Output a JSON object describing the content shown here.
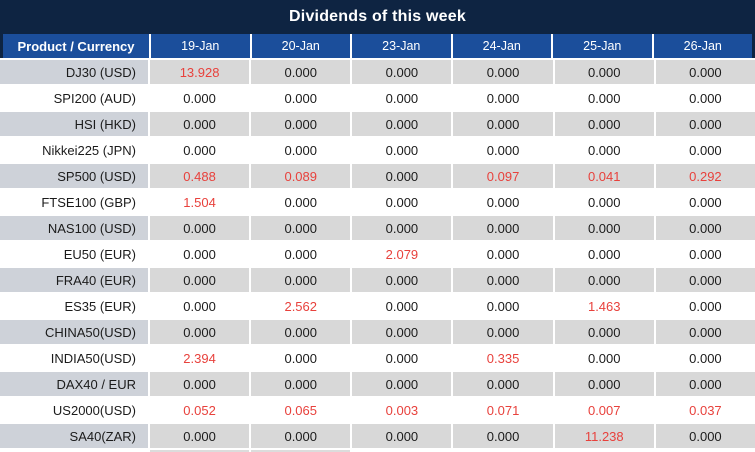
{
  "title": "Dividends of this week",
  "colors": {
    "title_bar_bg": "#0e2442",
    "header_bg": "#1b4e9b",
    "header_text": "#ffffff",
    "row_gray": "#d8d8d8",
    "product_column_gray": "#ced2d9",
    "row_white": "#ffffff",
    "value_text": "#1b1b1b",
    "nonzero_value_text": "#e8413c"
  },
  "chart_data": {
    "type": "table",
    "title": "Dividends of this week",
    "columns": [
      "Product / Currency",
      "19-Jan",
      "20-Jan",
      "23-Jan",
      "24-Jan",
      "25-Jan",
      "26-Jan"
    ],
    "rows": [
      {
        "product": "DJ30 (USD)",
        "values": [
          "13.928",
          "0.000",
          "0.000",
          "0.000",
          "0.000",
          "0.000"
        ]
      },
      {
        "product": "SPI200 (AUD)",
        "values": [
          "0.000",
          "0.000",
          "0.000",
          "0.000",
          "0.000",
          "0.000"
        ]
      },
      {
        "product": "HSI (HKD)",
        "values": [
          "0.000",
          "0.000",
          "0.000",
          "0.000",
          "0.000",
          "0.000"
        ]
      },
      {
        "product": "Nikkei225 (JPN)",
        "values": [
          "0.000",
          "0.000",
          "0.000",
          "0.000",
          "0.000",
          "0.000"
        ]
      },
      {
        "product": "SP500 (USD)",
        "values": [
          "0.488",
          "0.089",
          "0.000",
          "0.097",
          "0.041",
          "0.292"
        ]
      },
      {
        "product": "FTSE100 (GBP)",
        "values": [
          "1.504",
          "0.000",
          "0.000",
          "0.000",
          "0.000",
          "0.000"
        ]
      },
      {
        "product": "NAS100 (USD)",
        "values": [
          "0.000",
          "0.000",
          "0.000",
          "0.000",
          "0.000",
          "0.000"
        ]
      },
      {
        "product": "EU50 (EUR)",
        "values": [
          "0.000",
          "0.000",
          "2.079",
          "0.000",
          "0.000",
          "0.000"
        ]
      },
      {
        "product": "FRA40 (EUR)",
        "values": [
          "0.000",
          "0.000",
          "0.000",
          "0.000",
          "0.000",
          "0.000"
        ]
      },
      {
        "product": "ES35 (EUR)",
        "values": [
          "0.000",
          "2.562",
          "0.000",
          "0.000",
          "1.463",
          "0.000"
        ]
      },
      {
        "product": "CHINA50(USD)",
        "values": [
          "0.000",
          "0.000",
          "0.000",
          "0.000",
          "0.000",
          "0.000"
        ]
      },
      {
        "product": "INDIA50(USD)",
        "values": [
          "2.394",
          "0.000",
          "0.000",
          "0.335",
          "0.000",
          "0.000"
        ]
      },
      {
        "product": "DAX40 / EUR",
        "values": [
          "0.000",
          "0.000",
          "0.000",
          "0.000",
          "0.000",
          "0.000"
        ]
      },
      {
        "product": "US2000(USD)",
        "values": [
          "0.052",
          "0.065",
          "0.003",
          "0.071",
          "0.007",
          "0.037"
        ]
      },
      {
        "product": "SA40(ZAR)",
        "values": [
          "0.000",
          "0.000",
          "0.000",
          "0.000",
          "11.238",
          "0.000"
        ]
      }
    ],
    "highlight_rule": "non-zero dividend values rendered in red",
    "layout": {
      "row_alternation": "gray,white",
      "first_row_shade": "gray"
    }
  }
}
